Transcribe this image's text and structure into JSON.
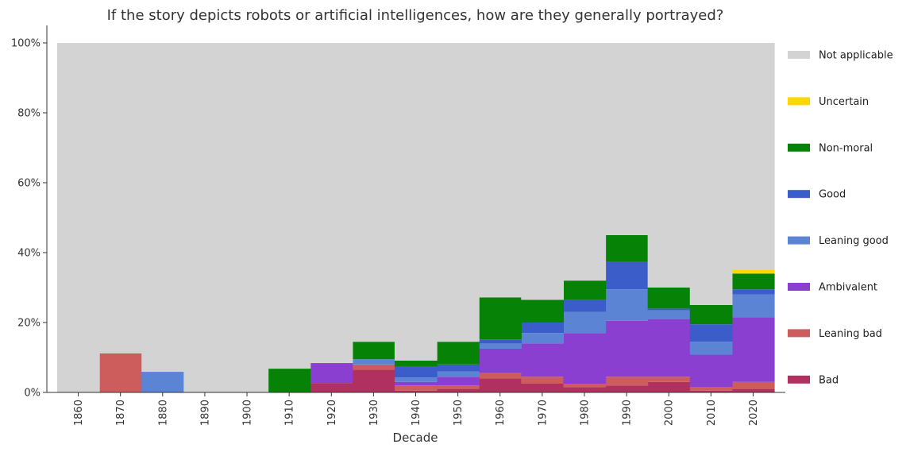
{
  "chart_data": {
    "type": "bar",
    "stacked": true,
    "title": "If the story depicts robots or artificial intelligences, how are they generally portrayed?",
    "xlabel": "Decade",
    "ylabel": "",
    "ylim": [
      0,
      100
    ],
    "yticks": [
      "0%",
      "20%",
      "40%",
      "60%",
      "80%",
      "100%"
    ],
    "categories": [
      "1860",
      "1870",
      "1880",
      "1890",
      "1900",
      "1910",
      "1920",
      "1930",
      "1940",
      "1950",
      "1960",
      "1970",
      "1980",
      "1990",
      "2000",
      "2010",
      "2020"
    ],
    "legend_position": "right",
    "series": [
      {
        "name": "Bad",
        "color": "#b03060",
        "values": [
          0,
          0,
          0,
          0,
          0,
          0,
          2.7,
          6.5,
          0.5,
          1,
          4,
          2.5,
          1.5,
          2,
          3,
          0.5,
          1
        ]
      },
      {
        "name": "Leaning bad",
        "color": "#cd5c5c",
        "values": [
          0,
          11.2,
          0,
          0,
          0,
          0,
          0,
          1.5,
          1.5,
          1,
          1.5,
          2,
          1,
          2.5,
          1.5,
          1,
          2
        ]
      },
      {
        "name": "Ambivalent",
        "color": "#8a3fd1",
        "values": [
          0,
          0,
          0,
          0,
          0,
          0,
          5.7,
          0,
          1,
          2.5,
          7,
          9.5,
          14.5,
          16,
          16.5,
          9.3,
          18.5
        ]
      },
      {
        "name": "Leaning good",
        "color": "#5b84d4",
        "values": [
          0,
          0,
          5.9,
          0,
          0,
          0,
          0,
          1.5,
          1.3,
          1.5,
          1.5,
          3,
          6,
          9,
          2.5,
          3.7,
          6.5
        ]
      },
      {
        "name": "Good",
        "color": "#3a5dc9",
        "values": [
          0,
          0,
          0,
          0,
          0,
          0,
          0,
          0,
          3.2,
          2,
          1.2,
          3,
          3.5,
          8,
          0.5,
          5,
          1.5
        ]
      },
      {
        "name": "Non-moral",
        "color": "#068206",
        "values": [
          0,
          0,
          0,
          0,
          0,
          6.8,
          0,
          5,
          1.6,
          6.5,
          12,
          6.5,
          5.5,
          7.5,
          6,
          5.5,
          4.5
        ]
      },
      {
        "name": "Uncertain",
        "color": "#ffd700",
        "values": [
          0,
          0,
          0,
          0,
          0,
          0,
          0,
          0,
          0,
          0,
          0,
          0,
          0,
          0,
          0,
          0,
          1
        ]
      },
      {
        "name": "Not applicable",
        "color": "#d3d3d3",
        "values": [
          100,
          88.8,
          94.1,
          100,
          100,
          93.2,
          91.6,
          85.5,
          90.9,
          85.5,
          72.8,
          73.5,
          68,
          55,
          70,
          75,
          65
        ]
      }
    ]
  }
}
